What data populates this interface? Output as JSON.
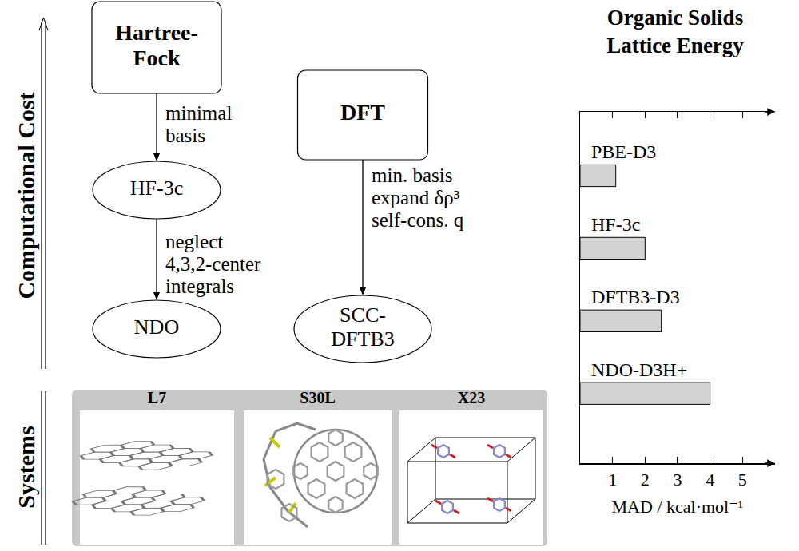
{
  "diagram": {
    "axis_labels": {
      "cost": "Computational Cost",
      "systems": "Systems"
    },
    "columns": [
      {
        "source": [
          "Hartree-",
          "Fock"
        ],
        "steps": [
          {
            "via": [
              "minimal",
              "basis"
            ],
            "result": [
              "HF-3c"
            ]
          },
          {
            "via": [
              "neglect",
              "4,3,2-center",
              "integrals"
            ],
            "result": [
              "NDO"
            ]
          }
        ]
      },
      {
        "source": [
          "DFT"
        ],
        "steps": [
          {
            "via": [
              "min. basis",
              "expand δρ³",
              "self-cons. q"
            ],
            "result": [
              "SCC-",
              "DFTB3"
            ]
          }
        ]
      }
    ],
    "systems": [
      "L7",
      "S30L",
      "X23"
    ]
  },
  "chart_data": {
    "type": "bar",
    "orientation": "horizontal",
    "title": [
      "Organic Solids",
      "Lattice Energy"
    ],
    "x_label": "MAD / kcal·mol⁻¹",
    "categories": [
      "PBE-D3",
      "HF-3c",
      "DFTB3-D3",
      "NDO-D3H+"
    ],
    "values": [
      1.1,
      2.0,
      2.5,
      4.0
    ],
    "color": "#d3d3d3",
    "xlim": [
      0,
      6
    ],
    "xticks": [
      1,
      2,
      3,
      4,
      5
    ],
    "tick_labels": "x",
    "grid": false
  }
}
